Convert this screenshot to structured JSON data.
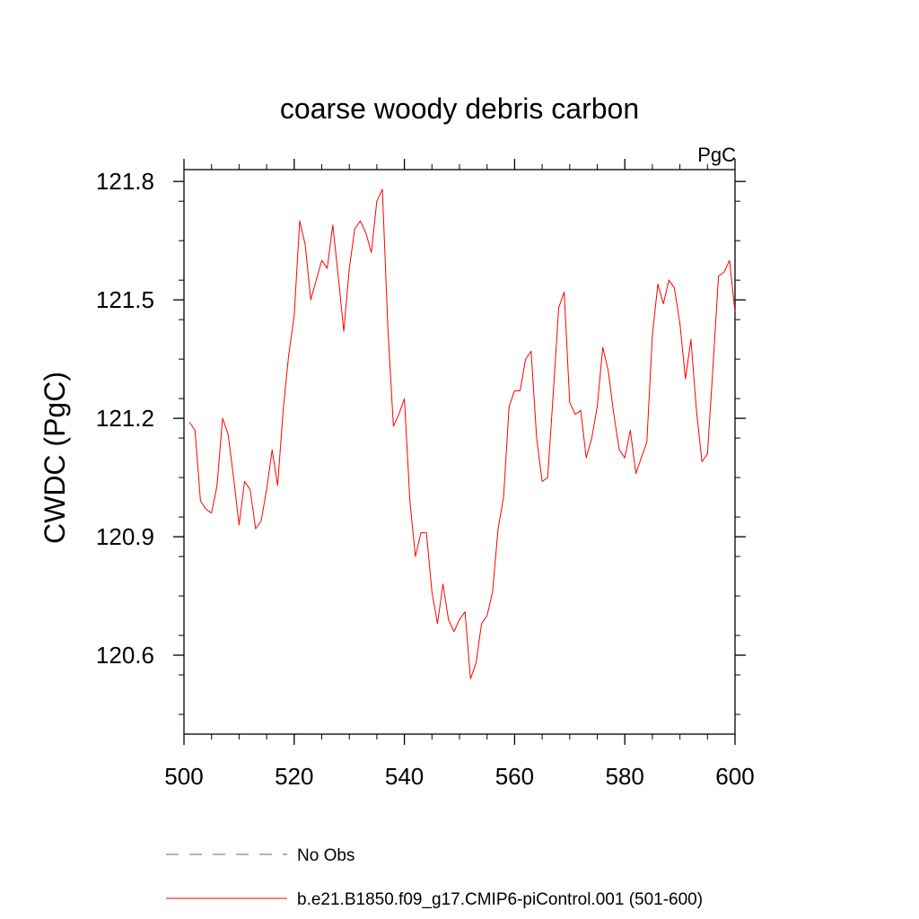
{
  "chart_data": {
    "type": "line",
    "title": "coarse woody debris carbon",
    "units": "PgC",
    "ylabel": "CWDC  (PgC)",
    "xlabel": "",
    "xlim": [
      500,
      600
    ],
    "ylim": [
      120.4,
      121.83
    ],
    "xticks": [
      500,
      520,
      540,
      560,
      580,
      600
    ],
    "xtick_labels": [
      "500",
      "520",
      "540",
      "560",
      "580",
      "600"
    ],
    "yticks": [
      120.6,
      120.9,
      121.2,
      121.5,
      121.8
    ],
    "ytick_labels": [
      "120.6",
      "120.9",
      "121.2",
      "121.5",
      "121.8"
    ],
    "grid": false,
    "legend_position": "bottom",
    "legend": [
      {
        "label": "No Obs",
        "color": "#5a5ac8",
        "style": "dashed"
      },
      {
        "label": "b.e21.B1850.f09_g17.CMIP6-piControl.001 (501-600)",
        "color": "#ff0000",
        "style": "solid"
      }
    ],
    "series": [
      {
        "name": "b.e21.B1850.f09_g17.CMIP6-piControl.001 (501-600)",
        "color": "#ff0000",
        "x": [
          501,
          502,
          503,
          504,
          505,
          506,
          507,
          508,
          509,
          510,
          511,
          512,
          513,
          514,
          515,
          516,
          517,
          518,
          519,
          520,
          521,
          522,
          523,
          524,
          525,
          526,
          527,
          528,
          529,
          530,
          531,
          532,
          533,
          534,
          535,
          536,
          537,
          538,
          539,
          540,
          541,
          542,
          543,
          544,
          545,
          546,
          547,
          548,
          549,
          550,
          551,
          552,
          553,
          554,
          555,
          556,
          557,
          558,
          559,
          560,
          561,
          562,
          563,
          564,
          565,
          566,
          567,
          568,
          569,
          570,
          571,
          572,
          573,
          574,
          575,
          576,
          577,
          578,
          579,
          580,
          581,
          582,
          583,
          584,
          585,
          586,
          587,
          588,
          589,
          590,
          591,
          592,
          593,
          594,
          595,
          596,
          597,
          598,
          599,
          600
        ],
        "values": [
          121.19,
          121.17,
          120.99,
          120.97,
          120.96,
          121.03,
          121.2,
          121.16,
          121.05,
          120.93,
          121.04,
          121.02,
          120.92,
          120.94,
          121.02,
          121.12,
          121.03,
          121.22,
          121.36,
          121.46,
          121.7,
          121.64,
          121.5,
          121.55,
          121.6,
          121.58,
          121.69,
          121.56,
          121.42,
          121.58,
          121.68,
          121.7,
          121.67,
          121.62,
          121.75,
          121.78,
          121.43,
          121.18,
          121.21,
          121.25,
          120.99,
          120.85,
          120.91,
          120.91,
          120.76,
          120.68,
          120.78,
          120.69,
          120.66,
          120.69,
          120.71,
          120.54,
          120.58,
          120.68,
          120.7,
          120.76,
          120.92,
          121.0,
          121.23,
          121.27,
          121.27,
          121.35,
          121.37,
          121.15,
          121.04,
          121.05,
          121.26,
          121.48,
          121.52,
          121.24,
          121.21,
          121.22,
          121.1,
          121.15,
          121.23,
          121.38,
          121.32,
          121.21,
          121.12,
          121.1,
          121.17,
          121.06,
          121.1,
          121.14,
          121.41,
          121.54,
          121.49,
          121.55,
          121.53,
          121.44,
          121.3,
          121.4,
          121.22,
          121.09,
          121.11,
          121.33,
          121.56,
          121.57,
          121.6,
          121.47
        ]
      }
    ]
  }
}
